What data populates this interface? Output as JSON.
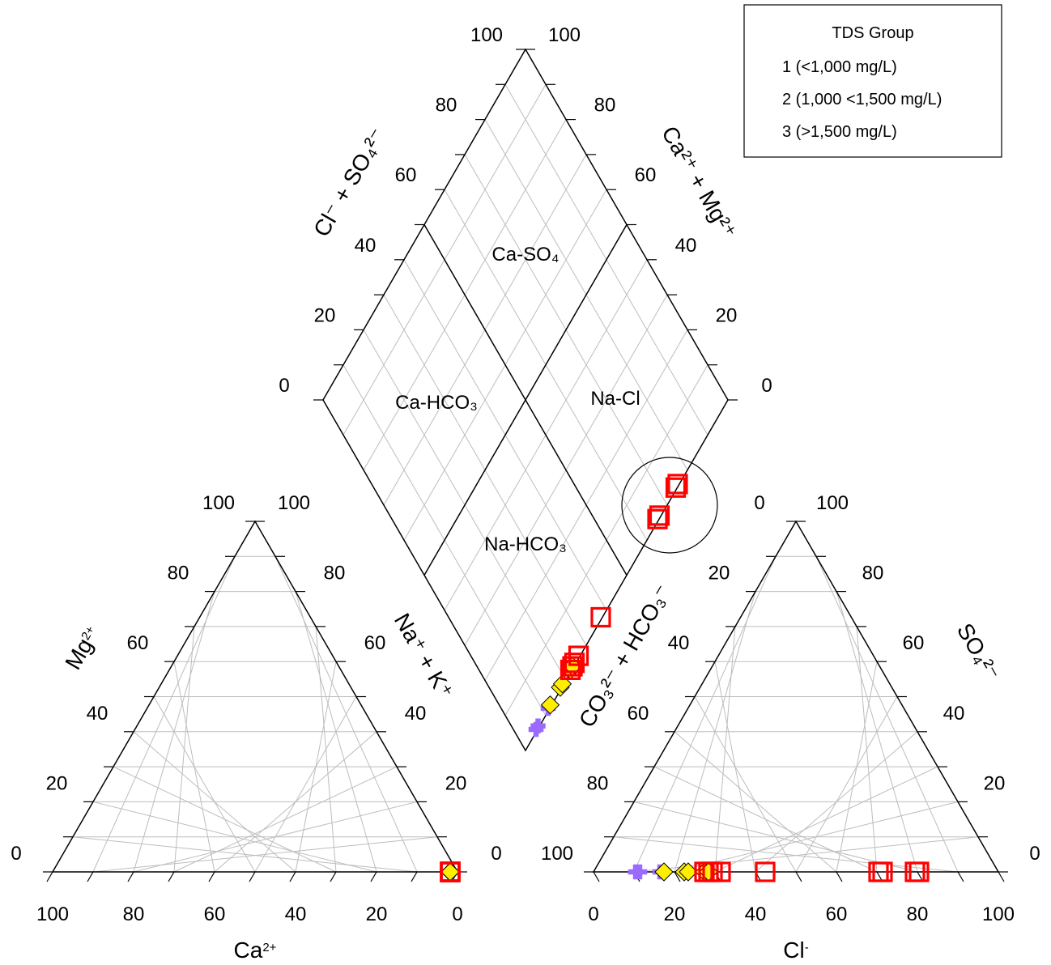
{
  "chart_data": {
    "type": "scatter",
    "diagram": "piper",
    "legend": {
      "title": "TDS Group",
      "placement": "top-right",
      "entries": [
        {
          "label": "1 (<1,000 mg/L)",
          "marker": "plus",
          "color": "#9b6bff"
        },
        {
          "label": "2 (1,000 <1,500 mg/L)",
          "marker": "diamond",
          "color": "#ffee00"
        },
        {
          "label": "3 (>1,500 mg/L)",
          "marker": "square",
          "color": "#ff0000"
        }
      ]
    },
    "cation_triangle": {
      "bottom_axis": {
        "label": "Ca",
        "sup": "2+",
        "ticks": [
          "100",
          "80",
          "60",
          "40",
          "20",
          "0"
        ]
      },
      "left_axis": {
        "label": "Mg",
        "sup": "2+",
        "ticks": [
          "0",
          "20",
          "40",
          "60",
          "80",
          "100"
        ]
      },
      "right_axis": {
        "label": "Na⁺ + K⁺",
        "ticks": [
          "0",
          "20",
          "40",
          "60",
          "80",
          "100"
        ]
      }
    },
    "anion_triangle": {
      "bottom_axis": {
        "label": "Cl",
        "sup": "-",
        "ticks": [
          "0",
          "20",
          "40",
          "60",
          "80",
          "100"
        ]
      },
      "right_axis": {
        "label": "SO₄²⁻",
        "ticks": [
          "0",
          "20",
          "40",
          "60",
          "80",
          "100"
        ]
      },
      "left_axis": {
        "label": "CO₃²⁻ + HCO₃⁻",
        "ticks": [
          "100",
          "80",
          "60",
          "40",
          "20",
          "0"
        ]
      }
    },
    "diamond": {
      "left_axis": {
        "label": "Cl⁻ + SO₄²⁻",
        "ticks": [
          "0",
          "20",
          "40",
          "60",
          "80",
          "100"
        ]
      },
      "right_axis": {
        "label": "Ca²⁺ + Mg²⁺",
        "ticks": [
          "0",
          "20",
          "40",
          "60",
          "80",
          "100"
        ]
      },
      "regions": [
        "Ca-SO₄",
        "Ca-HCO₃",
        "Na-Cl",
        "Na-HCO₃"
      ]
    },
    "samples": [
      {
        "group": 1,
        "na_k": 99,
        "cl": 5,
        "so4": 0
      },
      {
        "group": 1,
        "na_k": 99,
        "cl": 6,
        "so4": 0
      },
      {
        "group": 1,
        "na_k": 99,
        "cl": 11,
        "so4": 0
      },
      {
        "group": 2,
        "na_k": 99,
        "cl": 12,
        "so4": 0
      },
      {
        "group": 2,
        "na_k": 99,
        "cl": 17,
        "so4": 0
      },
      {
        "group": 2,
        "na_k": 99,
        "cl": 18,
        "so4": 0
      },
      {
        "group": 2,
        "na_k": 99,
        "cl": 22,
        "so4": 0
      },
      {
        "group": 2,
        "na_k": 99,
        "cl": 23,
        "so4": 0
      },
      {
        "group": 3,
        "na_k": 99,
        "cl": 22,
        "so4": 0
      },
      {
        "group": 3,
        "na_k": 99,
        "cl": 23,
        "so4": 0
      },
      {
        "group": 3,
        "na_k": 99,
        "cl": 24,
        "so4": 0
      },
      {
        "group": 3,
        "na_k": 99,
        "cl": 26,
        "so4": 0
      },
      {
        "group": 3,
        "na_k": 99,
        "cl": 37,
        "so4": 0
      },
      {
        "group": 3,
        "na_k": 99,
        "cl": 65,
        "so4": 0
      },
      {
        "group": 3,
        "na_k": 99,
        "cl": 66,
        "so4": 0
      },
      {
        "group": 3,
        "na_k": 99,
        "cl": 74,
        "so4": 0
      },
      {
        "group": 3,
        "na_k": 99,
        "cl": 75,
        "so4": 0
      }
    ],
    "highlight_circle": {
      "note": "circle drawn around the highest-Cl samples in the diamond"
    }
  }
}
